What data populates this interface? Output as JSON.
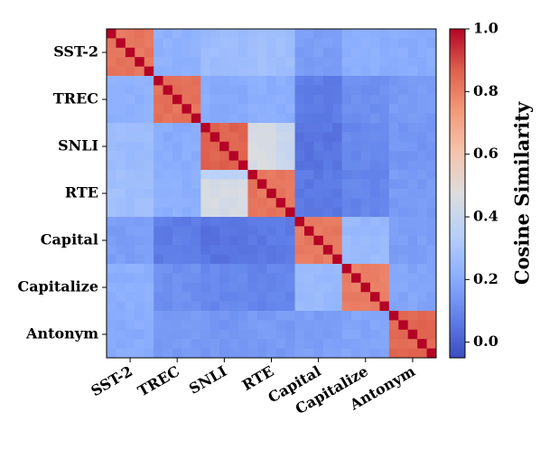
{
  "chart_data": {
    "type": "heatmap",
    "title": "",
    "categories": [
      "SST-2",
      "TREC",
      "SNLI",
      "RTE",
      "Capital",
      "Capitalize",
      "Antonym"
    ],
    "x_tick_labels": [
      "SST-2",
      "TREC",
      "SNLI",
      "RTE",
      "Capital",
      "Capitalize",
      "Antonym"
    ],
    "y_tick_labels": [
      "SST-2",
      "TREC",
      "SNLI",
      "RTE",
      "Capital",
      "Capitalize",
      "Antonym"
    ],
    "cells_per_category": 5,
    "colorbar": {
      "label": "Cosine Similarity",
      "range": [
        -0.05,
        1.0
      ],
      "ticks": [
        "0.0",
        "0.2",
        "0.4",
        "0.6",
        "0.8",
        "1.0"
      ],
      "colormap": "coolwarm"
    },
    "diagonal_value": 1.0,
    "within_block_value": {
      "SST-2": 0.82,
      "TREC": 0.83,
      "SNLI": 0.86,
      "RTE": 0.82,
      "Capital": 0.81,
      "Capitalize": 0.8,
      "Antonym": 0.85
    },
    "block_means": [
      [
        0.82,
        0.22,
        0.26,
        0.27,
        0.16,
        0.21,
        0.2
      ],
      [
        0.22,
        0.83,
        0.2,
        0.21,
        0.07,
        0.12,
        0.15
      ],
      [
        0.26,
        0.2,
        0.86,
        0.45,
        0.05,
        0.1,
        0.14
      ],
      [
        0.27,
        0.21,
        0.45,
        0.82,
        0.06,
        0.09,
        0.15
      ],
      [
        0.16,
        0.07,
        0.05,
        0.06,
        0.81,
        0.25,
        0.16
      ],
      [
        0.21,
        0.12,
        0.1,
        0.09,
        0.25,
        0.8,
        0.18
      ],
      [
        0.2,
        0.15,
        0.14,
        0.15,
        0.16,
        0.18,
        0.85
      ]
    ],
    "block_overrides": {
      "SNLI_RTE_right_part": 0.4,
      "RTE_SNLI_top_row": 0.36
    }
  }
}
